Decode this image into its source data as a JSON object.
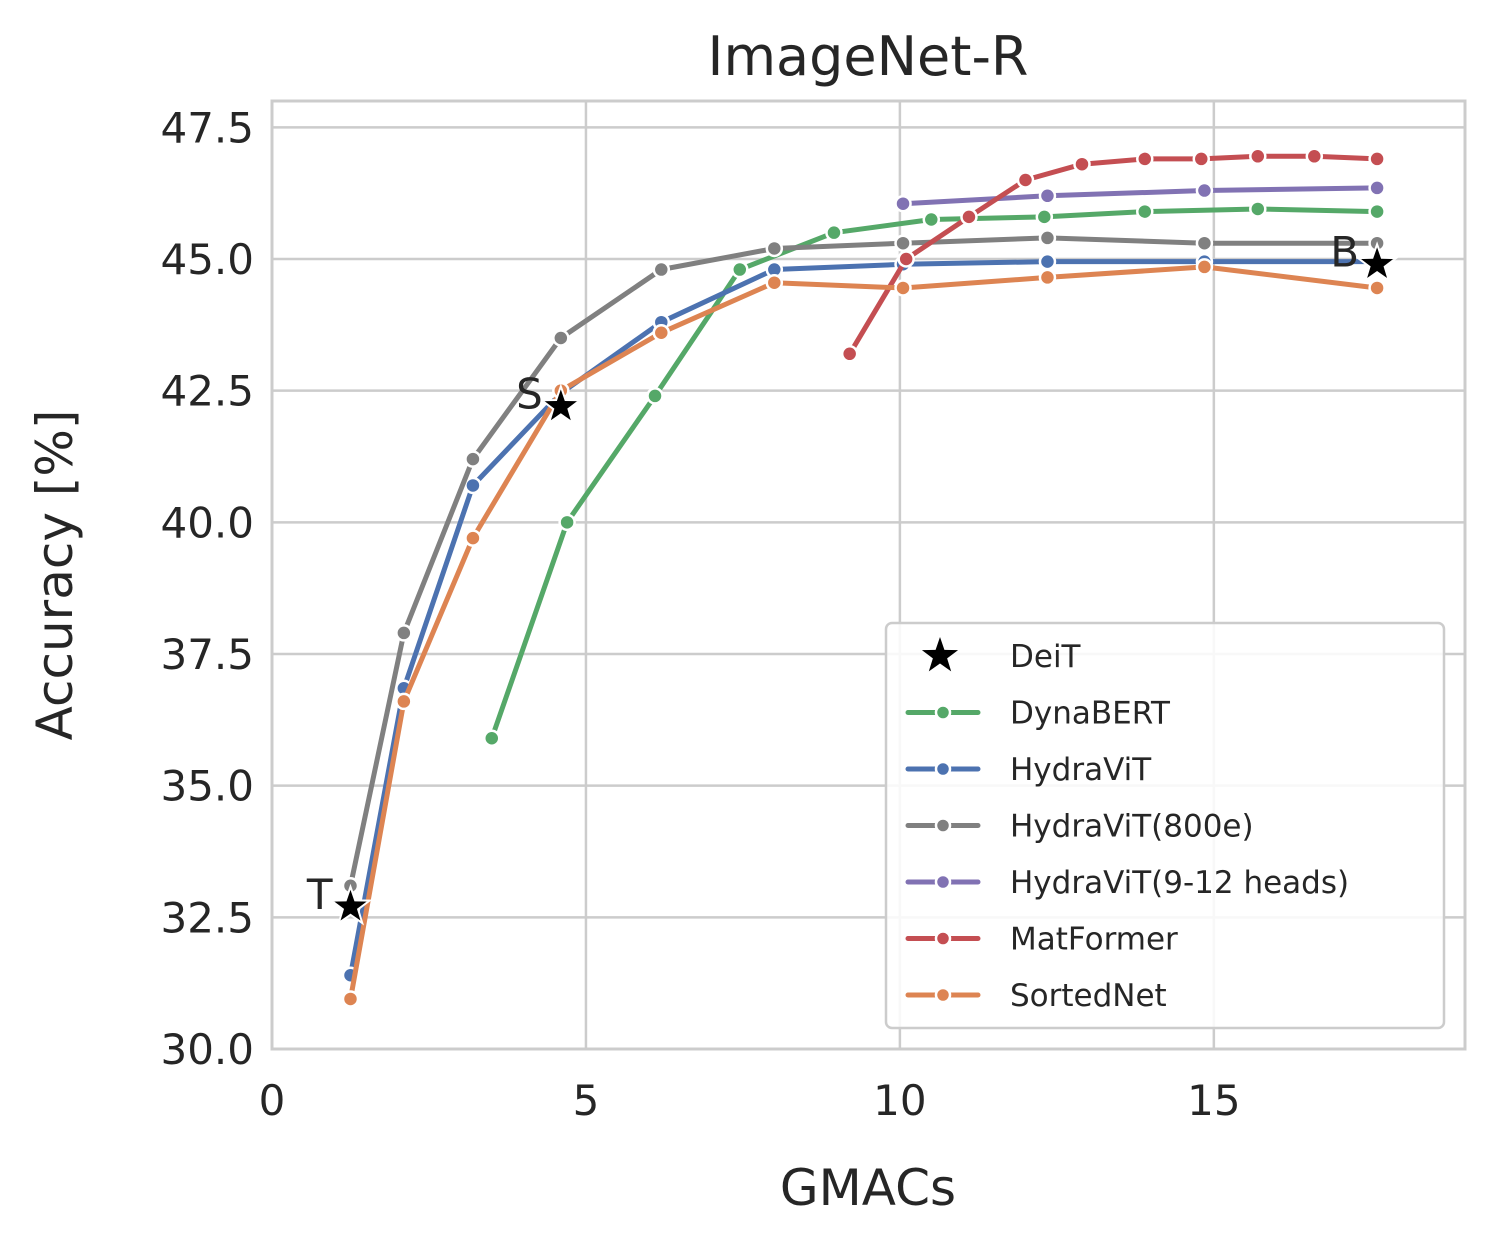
{
  "chart_data": {
    "type": "line",
    "title": "ImageNet-R",
    "xlabel": "GMACs",
    "ylabel": "Accuracy [%]",
    "xlim": [
      0,
      19
    ],
    "ylim": [
      30.0,
      48.0
    ],
    "xticks": [
      0,
      5,
      10,
      15
    ],
    "xtick_labels": [
      "0",
      "5",
      "10",
      "15"
    ],
    "yticks": [
      30.0,
      32.5,
      35.0,
      37.5,
      40.0,
      42.5,
      45.0,
      47.5
    ],
    "ytick_labels": [
      "30.0",
      "32.5",
      "35.0",
      "37.5",
      "40.0",
      "42.5",
      "45.0",
      "47.5"
    ],
    "grid": true,
    "legend_position": "lower-right",
    "deit": {
      "name": "DeiT",
      "color": "#000000",
      "points": [
        {
          "x": 1.25,
          "y": 32.7,
          "label": "T"
        },
        {
          "x": 4.6,
          "y": 42.2,
          "label": "S"
        },
        {
          "x": 17.6,
          "y": 44.9,
          "label": "B"
        }
      ]
    },
    "series": [
      {
        "name": "DynaBERT",
        "color": "#55a868",
        "x": [
          3.5,
          4.7,
          6.1,
          7.45,
          8.95,
          10.5,
          12.3,
          13.9,
          15.7,
          17.6
        ],
        "y": [
          35.9,
          40.0,
          42.4,
          44.8,
          45.5,
          45.75,
          45.8,
          45.9,
          45.95,
          45.9
        ]
      },
      {
        "name": "HydraViT",
        "color": "#4c72b0",
        "x": [
          1.25,
          2.1,
          3.2,
          4.6,
          6.2,
          8.0,
          10.05,
          12.35,
          14.85,
          17.6
        ],
        "y": [
          31.4,
          36.85,
          40.7,
          42.45,
          43.8,
          44.8,
          44.9,
          44.95,
          44.95,
          44.95
        ]
      },
      {
        "name": "HydraViT(800e)",
        "color": "#808080",
        "x": [
          1.25,
          2.1,
          3.2,
          4.6,
          6.2,
          8.0,
          10.05,
          12.35,
          14.85,
          17.6
        ],
        "y": [
          33.1,
          37.9,
          41.2,
          43.5,
          44.8,
          45.2,
          45.3,
          45.4,
          45.3,
          45.3
        ]
      },
      {
        "name": "HydraViT(9-12 heads)",
        "color": "#8172b3",
        "x": [
          10.05,
          12.35,
          14.85,
          17.6
        ],
        "y": [
          46.05,
          46.2,
          46.3,
          46.35
        ]
      },
      {
        "name": "MatFormer",
        "color": "#c44e52",
        "x": [
          9.2,
          10.1,
          11.1,
          12.0,
          12.9,
          13.9,
          14.8,
          15.7,
          16.6,
          17.6
        ],
        "y": [
          43.2,
          45.0,
          45.8,
          46.5,
          46.8,
          46.9,
          46.9,
          46.95,
          46.95,
          46.9
        ]
      },
      {
        "name": "SortedNet",
        "color": "#dd8452",
        "x": [
          1.25,
          2.1,
          3.2,
          4.6,
          6.2,
          8.0,
          10.05,
          12.35,
          14.85,
          17.6
        ],
        "y": [
          30.95,
          36.6,
          39.7,
          42.5,
          43.6,
          44.55,
          44.45,
          44.65,
          44.85,
          44.45
        ]
      }
    ]
  }
}
